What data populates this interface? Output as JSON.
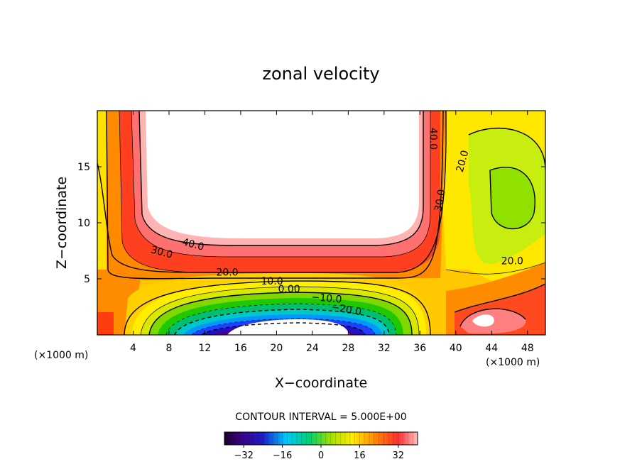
{
  "chart_data": {
    "type": "filled-contour",
    "title": "zonal velocity",
    "xlabel": "X−coordinate",
    "ylabel": "Z−coordinate",
    "x_unit_left": "(×1000 m)",
    "x_unit_right": "(×1000 m)",
    "xlim": [
      0,
      50
    ],
    "ylim": [
      0,
      20
    ],
    "x_ticks": [
      {
        "value": 4,
        "label": "4"
      },
      {
        "value": 8,
        "label": "8"
      },
      {
        "value": 12,
        "label": "12"
      },
      {
        "value": 16,
        "label": "16"
      },
      {
        "value": 20,
        "label": "20"
      },
      {
        "value": 24,
        "label": "24"
      },
      {
        "value": 28,
        "label": "28"
      },
      {
        "value": 32,
        "label": "32"
      },
      {
        "value": 36,
        "label": "36"
      },
      {
        "value": 40,
        "label": "40"
      },
      {
        "value": 44,
        "label": "44"
      },
      {
        "value": 48,
        "label": "48"
      }
    ],
    "y_ticks": [
      {
        "value": 5,
        "label": "5"
      },
      {
        "value": 10,
        "label": "10"
      },
      {
        "value": 15,
        "label": "15"
      }
    ],
    "contour_interval_text": "CONTOUR INTERVAL = 5.000E+00",
    "contour_labels": [
      {
        "text": "40.0",
        "x": 37.5,
        "z": 17.5,
        "rotate": 90
      },
      {
        "text": "20.0",
        "x": 40.7,
        "z": 15.5,
        "rotate": -75
      },
      {
        "text": "30.0",
        "x": 38.2,
        "z": 12.0,
        "rotate": -80
      },
      {
        "text": "40.0",
        "x": 10.7,
        "z": 8.1,
        "rotate": 15
      },
      {
        "text": "30.0",
        "x": 7.2,
        "z": 7.4,
        "rotate": 15
      },
      {
        "text": "20.0",
        "x": 14.5,
        "z": 5.6,
        "rotate": 0
      },
      {
        "text": "10.0",
        "x": 19.5,
        "z": 4.8,
        "rotate": 0
      },
      {
        "text": "0.00",
        "x": 21.4,
        "z": 4.1,
        "rotate": 0
      },
      {
        "text": "−10.0",
        "x": 25.6,
        "z": 3.3,
        "rotate": 5
      },
      {
        "text": "−20.0",
        "x": 27.8,
        "z": 2.3,
        "rotate": 10
      },
      {
        "text": "20.0",
        "x": 46.3,
        "z": 6.6,
        "rotate": 0
      }
    ],
    "colorbar": {
      "range": [
        -40,
        40
      ],
      "ticks": [
        {
          "value": -32,
          "label": "−32"
        },
        {
          "value": -16,
          "label": "−16"
        },
        {
          "value": 0,
          "label": "0"
        },
        {
          "value": 16,
          "label": "16"
        },
        {
          "value": 32,
          "label": "32"
        }
      ]
    },
    "features": {
      "jet_core": {
        "description_value_max": "> 45",
        "x_range": [
          5,
          37
        ],
        "z_range": [
          7,
          20
        ]
      },
      "reverse_flow_core": {
        "value_min": "< -30",
        "x_range": [
          15,
          30
        ],
        "z_range": [
          0,
          1.6
        ]
      },
      "secondary_core": {
        "value": "> 45",
        "x": 44.5,
        "z": 1.3
      }
    }
  }
}
